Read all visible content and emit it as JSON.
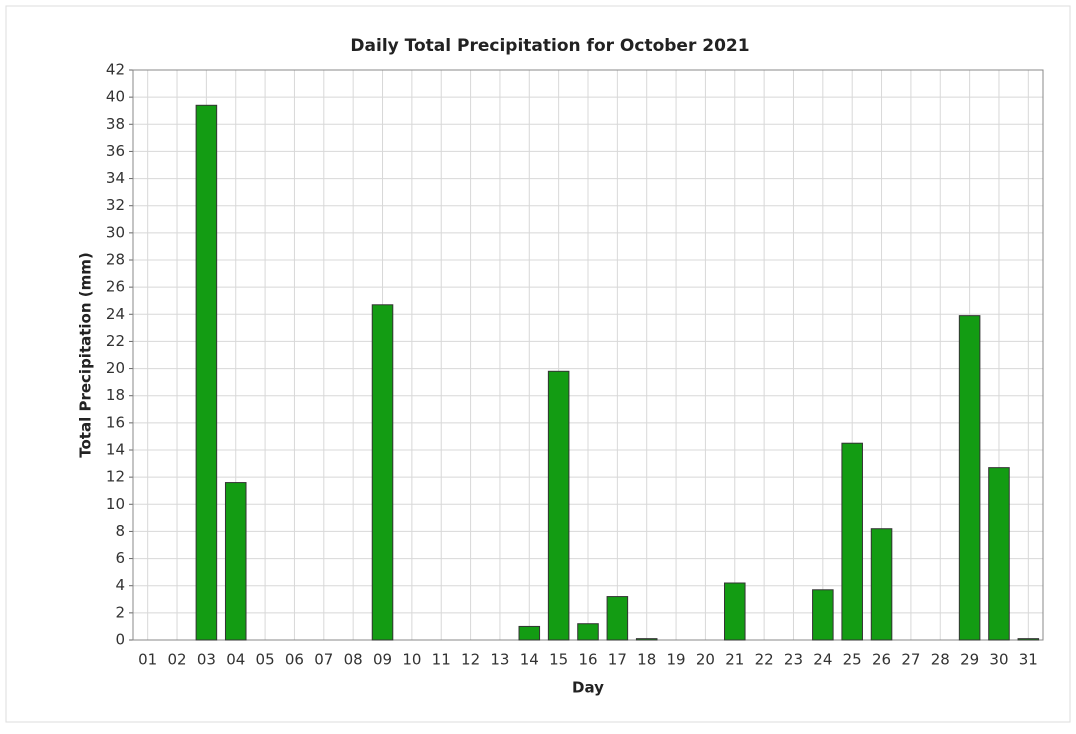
{
  "chart_data": {
    "type": "bar",
    "title": "Daily Total Precipitation for October 2021",
    "x_label": "Day",
    "y_label": "Total Precipitation (mm)",
    "categories": [
      "01",
      "02",
      "03",
      "04",
      "05",
      "06",
      "07",
      "08",
      "09",
      "10",
      "11",
      "12",
      "13",
      "14",
      "15",
      "16",
      "17",
      "18",
      "19",
      "20",
      "21",
      "22",
      "23",
      "24",
      "25",
      "26",
      "27",
      "28",
      "29",
      "30",
      "31"
    ],
    "values": [
      0,
      0,
      39.4,
      11.6,
      0,
      0,
      0,
      0,
      24.7,
      0,
      0,
      0,
      0,
      1.0,
      19.8,
      1.2,
      3.2,
      0.1,
      0,
      0,
      4.2,
      0,
      0,
      3.7,
      14.5,
      8.2,
      0,
      0,
      23.9,
      12.7,
      0.1
    ],
    "color": "#139c13",
    "ylim": [
      0,
      42
    ],
    "yticks": [
      0,
      2,
      4,
      6,
      8,
      10,
      12,
      14,
      16,
      18,
      20,
      22,
      24,
      26,
      28,
      30,
      32,
      34,
      36,
      38,
      40,
      42
    ],
    "grid": true
  }
}
